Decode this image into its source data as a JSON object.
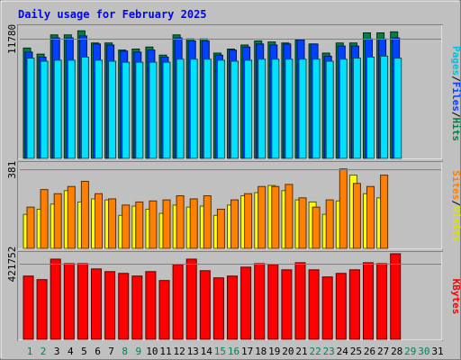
{
  "chart_data": [
    {
      "type": "bar",
      "panel": "requests",
      "title": "Daily usage for February 2025",
      "categories": [
        "1",
        "2",
        "3",
        "4",
        "5",
        "6",
        "7",
        "8",
        "9",
        "10",
        "11",
        "12",
        "13",
        "14",
        "15",
        "16",
        "17",
        "18",
        "19",
        "20",
        "21",
        "22",
        "23",
        "24",
        "25",
        "26",
        "27",
        "28",
        "29",
        "30",
        "31"
      ],
      "weekend_days": [
        1,
        2,
        8,
        9,
        15,
        16,
        22,
        23,
        29,
        30
      ],
      "ylabel_ticks": [
        "11780"
      ],
      "ylim": [
        0,
        12800
      ],
      "series": [
        {
          "name": "Hits",
          "color": "#008040",
          "values": [
            10900,
            10300,
            12200,
            12200,
            12600,
            11400,
            11400,
            10700,
            10800,
            11000,
            10200,
            12200,
            11800,
            11800,
            10400,
            10800,
            11200,
            11600,
            11500,
            11400,
            11700,
            11300,
            10400,
            11400,
            11400,
            12400,
            12400,
            12500,
            0,
            0,
            0
          ]
        },
        {
          "name": "Files",
          "color": "#0040ff",
          "values": [
            10500,
            10000,
            11900,
            11900,
            12100,
            11300,
            11200,
            10600,
            10500,
            10700,
            10000,
            11900,
            11600,
            11600,
            10200,
            10700,
            11000,
            11300,
            11200,
            11300,
            11700,
            11300,
            10100,
            11100,
            11100,
            11800,
            11800,
            11900,
            0,
            0,
            0
          ]
        },
        {
          "name": "Pages",
          "color": "#00e0ff",
          "values": [
            9900,
            9600,
            9700,
            9700,
            10000,
            9700,
            9600,
            9500,
            9500,
            9500,
            9500,
            9800,
            9800,
            9800,
            9700,
            9600,
            9700,
            9800,
            9800,
            9800,
            9800,
            9800,
            9600,
            9800,
            9900,
            10000,
            10100,
            9900,
            0,
            0,
            0
          ]
        }
      ]
    },
    {
      "type": "bar",
      "panel": "visits",
      "ylabel_ticks": [
        "381"
      ],
      "ylim": [
        0,
        410
      ],
      "series": [
        {
          "name": "Visits",
          "color": "#ffff00",
          "values": [
            165,
            190,
            215,
            280,
            225,
            240,
            235,
            160,
            205,
            190,
            170,
            210,
            200,
            205,
            160,
            210,
            255,
            270,
            305,
            280,
            235,
            225,
            165,
            230,
            355,
            265,
            245,
            0,
            0,
            0,
            0
          ]
        },
        {
          "name": "Sites",
          "color": "#ff8000",
          "values": [
            200,
            285,
            265,
            300,
            325,
            265,
            240,
            210,
            225,
            230,
            235,
            255,
            240,
            255,
            190,
            235,
            265,
            300,
            300,
            310,
            245,
            200,
            235,
            385,
            315,
            300,
            355,
            0,
            0,
            0,
            0
          ]
        }
      ]
    },
    {
      "type": "bar",
      "panel": "kbytes",
      "ylabel_ticks": [
        "421752"
      ],
      "ylim": [
        0,
        480000
      ],
      "series": [
        {
          "name": "KBytes",
          "color": "#ff0000",
          "values": [
            355000,
            335000,
            450000,
            425000,
            425000,
            395000,
            380000,
            370000,
            355000,
            380000,
            330000,
            420000,
            450000,
            385000,
            345000,
            355000,
            405000,
            425000,
            420000,
            390000,
            430000,
            390000,
            350000,
            370000,
            390000,
            430000,
            425000,
            480000,
            0,
            0,
            0
          ]
        }
      ]
    }
  ],
  "legend": {
    "requests": [
      "Pages",
      "Files",
      "Hits"
    ],
    "visits": [
      "Sites",
      "Visits"
    ],
    "kbytes": [
      "KBytes"
    ],
    "separator": "/"
  },
  "colors": {
    "background": "#c0c0c0",
    "frame_light": "#ffffff",
    "frame_dark": "#808080",
    "title": "#0000ff",
    "weekday_label": "#000000",
    "weekend_label": "#00805c"
  }
}
